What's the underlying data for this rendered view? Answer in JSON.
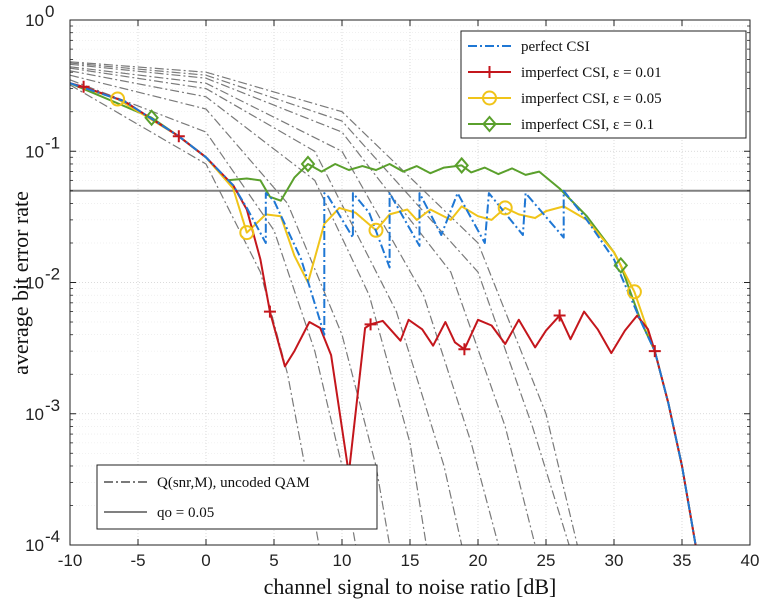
{
  "chart_data": {
    "type": "line",
    "xlabel": "channel signal to noise ratio [dB]",
    "ylabel": "average bit error rate",
    "xlim": [
      -10,
      40
    ],
    "ylim": [
      0.0001,
      1
    ],
    "yscale": "log",
    "grid": true,
    "x_ticks": [
      "-10",
      "-5",
      "0",
      "5",
      "10",
      "15",
      "20",
      "25",
      "30",
      "35",
      "40"
    ],
    "y_ticks": [
      {
        "base": "10",
        "exp": "0"
      },
      {
        "base": "10",
        "exp": "-1"
      },
      {
        "base": "10",
        "exp": "-2"
      },
      {
        "base": "10",
        "exp": "-3"
      },
      {
        "base": "10",
        "exp": "-4"
      }
    ],
    "legend_main": {
      "placement": "top-right",
      "entries": [
        {
          "text": "perfect CSI",
          "color": "#1f77d4",
          "style": "dashdot",
          "marker": "none"
        },
        {
          "text": "imperfect CSI, ε = 0.01",
          "color": "#c4161c",
          "style": "solid",
          "marker": "plus"
        },
        {
          "text": "imperfect CSI, ε = 0.05",
          "color": "#f0c419",
          "style": "solid",
          "marker": "circle"
        },
        {
          "text": "imperfect CSI, ε = 0.1",
          "color": "#5aa02c",
          "style": "solid",
          "marker": "diamond"
        }
      ]
    },
    "legend_secondary": {
      "placement": "bottom-left",
      "entries": [
        {
          "text": "Q(snr,M), uncoded QAM",
          "color": "#7a7a7a",
          "style": "dashdot"
        },
        {
          "text": "qo = 0.05",
          "color": "#808080",
          "style": "solid"
        }
      ]
    },
    "threshold": {
      "name": "qo = 0.05",
      "value": 0.05,
      "color": "#808080"
    },
    "qam_curves": {
      "color": "#7a7a7a",
      "curves": [
        {
          "points": [
            [
              -10,
              0.48
            ],
            [
              0,
              0.4
            ],
            [
              10,
              0.2
            ],
            [
              20,
              0.02
            ],
            [
              25,
              0.001
            ],
            [
              27.3,
              0.0001
            ]
          ]
        },
        {
          "points": [
            [
              -10,
              0.47
            ],
            [
              0,
              0.38
            ],
            [
              10,
              0.17
            ],
            [
              20,
              0.012
            ],
            [
              24,
              0.0008
            ],
            [
              26.7,
              0.0001
            ]
          ]
        },
        {
          "points": [
            [
              -10,
              0.46
            ],
            [
              0,
              0.36
            ],
            [
              10,
              0.14
            ],
            [
              18,
              0.012
            ],
            [
              22,
              0.0008
            ],
            [
              24.2,
              0.0001
            ]
          ]
        },
        {
          "points": [
            [
              -10,
              0.44
            ],
            [
              0,
              0.33
            ],
            [
              10,
              0.1
            ],
            [
              16,
              0.008
            ],
            [
              19.5,
              0.0006
            ],
            [
              21.5,
              0.0001
            ]
          ]
        },
        {
          "points": [
            [
              -10,
              0.43
            ],
            [
              0,
              0.3
            ],
            [
              8,
              0.1
            ],
            [
              14,
              0.006
            ],
            [
              17.5,
              0.0004
            ],
            [
              18.8,
              0.0001
            ]
          ]
        },
        {
          "points": [
            [
              -10,
              0.41
            ],
            [
              0,
              0.26
            ],
            [
              8,
              0.06
            ],
            [
              12,
              0.008
            ],
            [
              15,
              0.0006
            ],
            [
              16.2,
              0.0001
            ]
          ]
        },
        {
          "points": [
            [
              -10,
              0.38
            ],
            [
              0,
              0.21
            ],
            [
              6,
              0.04
            ],
            [
              10,
              0.004
            ],
            [
              12.5,
              0.0004
            ],
            [
              13.5,
              0.0001
            ]
          ]
        },
        {
          "points": [
            [
              -10,
              0.35
            ],
            [
              0,
              0.14
            ],
            [
              5,
              0.025
            ],
            [
              8,
              0.003
            ],
            [
              10,
              0.0004
            ],
            [
              11,
              0.0001
            ]
          ]
        },
        {
          "points": [
            [
              -10,
              0.32
            ],
            [
              0,
              0.08
            ],
            [
              4,
              0.012
            ],
            [
              6,
              0.002
            ],
            [
              7.5,
              0.0003
            ],
            [
              8.3,
              0.0001
            ]
          ]
        }
      ]
    },
    "series": [
      {
        "name": "perfect CSI",
        "color": "#1f77d4",
        "style": "dashdot",
        "marker": "none",
        "points": [
          [
            -10,
            0.33
          ],
          [
            -6,
            0.24
          ],
          [
            -2,
            0.13
          ],
          [
            0,
            0.09
          ],
          [
            2,
            0.055
          ],
          [
            3,
            0.037
          ],
          [
            4.4,
            0.02
          ],
          [
            4.4,
            0.048
          ],
          [
            5,
            0.042
          ],
          [
            7,
            0.015
          ],
          [
            8.7,
            0.004
          ],
          [
            8.7,
            0.048
          ],
          [
            9,
            0.045
          ],
          [
            10.8,
            0.022
          ],
          [
            10.8,
            0.048
          ],
          [
            12,
            0.034
          ],
          [
            13.5,
            0.013
          ],
          [
            13.5,
            0.048
          ],
          [
            15.7,
            0.019
          ],
          [
            15.7,
            0.048
          ],
          [
            17.3,
            0.023
          ],
          [
            18.5,
            0.048
          ],
          [
            20.5,
            0.02
          ],
          [
            20.8,
            0.048
          ],
          [
            23.3,
            0.023
          ],
          [
            23.5,
            0.048
          ],
          [
            26.3,
            0.022
          ],
          [
            26.3,
            0.05
          ],
          [
            28,
            0.03
          ],
          [
            30,
            0.015
          ],
          [
            32,
            0.005
          ],
          [
            33,
            0.003
          ],
          [
            34,
            0.0012
          ],
          [
            35,
            0.0004
          ],
          [
            36,
            0.0001
          ]
        ]
      },
      {
        "name": "imperfect CSI, ε = 0.01",
        "color": "#c4161c",
        "style": "solid",
        "marker": "plus",
        "marker_x": [
          -9,
          -2,
          4.7,
          12.1,
          19,
          26,
          33
        ],
        "points": [
          [
            -10,
            0.33
          ],
          [
            -9,
            0.31
          ],
          [
            -6,
            0.24
          ],
          [
            -2,
            0.13
          ],
          [
            0,
            0.09
          ],
          [
            2,
            0.055
          ],
          [
            3,
            0.036
          ],
          [
            4,
            0.015
          ],
          [
            4.7,
            0.006
          ],
          [
            5.8,
            0.0023
          ],
          [
            6.5,
            0.003
          ],
          [
            7.6,
            0.005
          ],
          [
            8.4,
            0.0045
          ],
          [
            9.2,
            0.0028
          ],
          [
            10.5,
            0.00035
          ],
          [
            11.7,
            0.0045
          ],
          [
            12.1,
            0.0048
          ],
          [
            13,
            0.0051
          ],
          [
            14.3,
            0.0036
          ],
          [
            14.9,
            0.0052
          ],
          [
            15.9,
            0.0044
          ],
          [
            16.7,
            0.0033
          ],
          [
            17.6,
            0.005
          ],
          [
            18.3,
            0.0035
          ],
          [
            19,
            0.0031
          ],
          [
            20,
            0.0052
          ],
          [
            21,
            0.0047
          ],
          [
            22,
            0.0034
          ],
          [
            23,
            0.0052
          ],
          [
            24.2,
            0.0032
          ],
          [
            25,
            0.0043
          ],
          [
            26,
            0.0056
          ],
          [
            26.8,
            0.0037
          ],
          [
            27.8,
            0.006
          ],
          [
            28.8,
            0.0044
          ],
          [
            29.8,
            0.0029
          ],
          [
            30.8,
            0.0043
          ],
          [
            31.7,
            0.0056
          ],
          [
            32.5,
            0.0044
          ],
          [
            33,
            0.003
          ],
          [
            34,
            0.0012
          ],
          [
            35,
            0.0004
          ],
          [
            36,
            0.0001
          ]
        ]
      },
      {
        "name": "imperfect CSI, ε = 0.05",
        "color": "#f0c419",
        "style": "solid",
        "marker": "circle",
        "marker_x": [
          -6.5,
          3,
          12.5,
          22,
          31.5
        ],
        "points": [
          [
            -10,
            0.33
          ],
          [
            -6.5,
            0.25
          ],
          [
            -2,
            0.13
          ],
          [
            0,
            0.09
          ],
          [
            2,
            0.052
          ],
          [
            3,
            0.024
          ],
          [
            4.4,
            0.033
          ],
          [
            5.5,
            0.032
          ],
          [
            6.5,
            0.016
          ],
          [
            7.5,
            0.01
          ],
          [
            8.7,
            0.028
          ],
          [
            9.8,
            0.037
          ],
          [
            11,
            0.034
          ],
          [
            12.5,
            0.025
          ],
          [
            13.5,
            0.033
          ],
          [
            14.8,
            0.036
          ],
          [
            15.5,
            0.03
          ],
          [
            16.5,
            0.036
          ],
          [
            18,
            0.03
          ],
          [
            18.8,
            0.038
          ],
          [
            20,
            0.032
          ],
          [
            21,
            0.03
          ],
          [
            22,
            0.037
          ],
          [
            23,
            0.033
          ],
          [
            24.2,
            0.031
          ],
          [
            25,
            0.035
          ],
          [
            26.3,
            0.038
          ],
          [
            28,
            0.03
          ],
          [
            30,
            0.017
          ],
          [
            31.5,
            0.0085
          ],
          [
            33,
            0.003
          ],
          [
            34,
            0.0012
          ],
          [
            35,
            0.0004
          ],
          [
            36,
            0.0001
          ]
        ]
      },
      {
        "name": "imperfect CSI, ε = 0.1",
        "color": "#5aa02c",
        "style": "solid",
        "marker": "diamond",
        "marker_x": [
          -4,
          7.5,
          18.8,
          30.5
        ],
        "points": [
          [
            -10,
            0.33
          ],
          [
            -4,
            0.18
          ],
          [
            -2,
            0.13
          ],
          [
            0,
            0.09
          ],
          [
            1.5,
            0.06
          ],
          [
            3,
            0.062
          ],
          [
            4,
            0.06
          ],
          [
            4.7,
            0.045
          ],
          [
            5.5,
            0.042
          ],
          [
            6.5,
            0.063
          ],
          [
            7.5,
            0.08
          ],
          [
            8.5,
            0.07
          ],
          [
            9.5,
            0.08
          ],
          [
            10.5,
            0.072
          ],
          [
            11.5,
            0.077
          ],
          [
            12.5,
            0.072
          ],
          [
            13.5,
            0.08
          ],
          [
            14.5,
            0.07
          ],
          [
            15.5,
            0.077
          ],
          [
            16.5,
            0.068
          ],
          [
            17.5,
            0.075
          ],
          [
            18.8,
            0.078
          ],
          [
            19.5,
            0.069
          ],
          [
            20.5,
            0.075
          ],
          [
            21.5,
            0.067
          ],
          [
            22.5,
            0.074
          ],
          [
            23.5,
            0.066
          ],
          [
            24.5,
            0.07
          ],
          [
            26,
            0.052
          ],
          [
            28,
            0.032
          ],
          [
            30,
            0.017
          ],
          [
            30.5,
            0.0135
          ],
          [
            32,
            0.005
          ],
          [
            33,
            0.003
          ],
          [
            34,
            0.0012
          ],
          [
            35,
            0.0004
          ],
          [
            36,
            0.0001
          ]
        ]
      }
    ]
  }
}
